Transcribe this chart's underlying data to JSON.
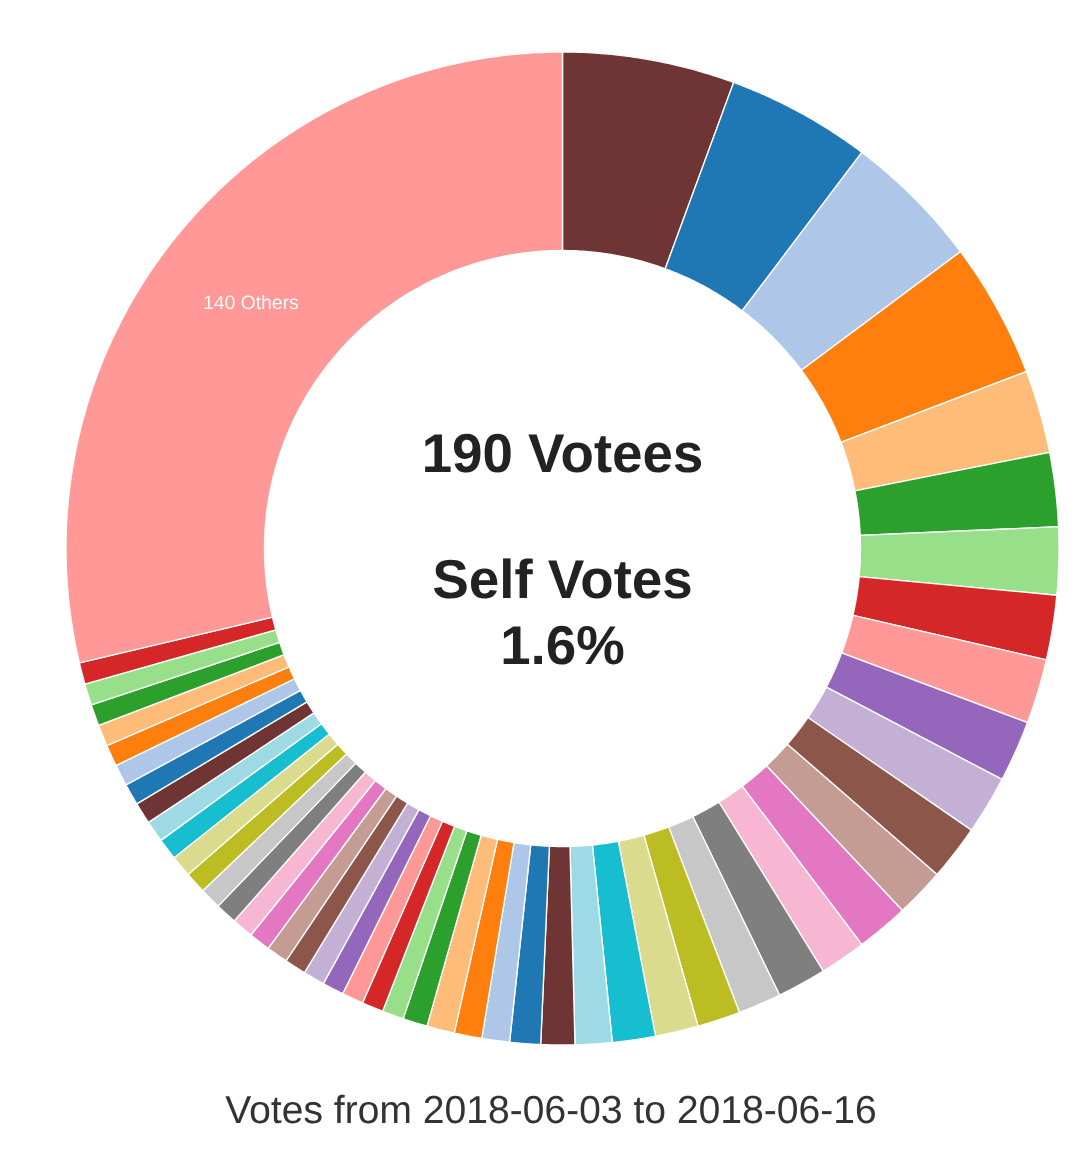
{
  "chart_data": {
    "type": "donut",
    "title": "190 Votees",
    "annotations": [
      "Self Votes",
      "1.6%",
      "Votes from 2018-06-03 to 2018-06-16"
    ],
    "categories": [
      null,
      null,
      null,
      null,
      null,
      null,
      null,
      null,
      null,
      null,
      null,
      null,
      null,
      null,
      null,
      null,
      null,
      null,
      null,
      null,
      null,
      null,
      null,
      null,
      null,
      null,
      null,
      null,
      null,
      null,
      null,
      null,
      null,
      null,
      null,
      null,
      null,
      null,
      null,
      null,
      null,
      null,
      null,
      null,
      null,
      null,
      null,
      null,
      null,
      null,
      "140 Others"
    ],
    "values": [
      5.6,
      4.7,
      4.5,
      4.4,
      2.7,
      2.4,
      2.2,
      2.1,
      2.1,
      2.0,
      1.9,
      1.8,
      1.6,
      1.7,
      1.5,
      1.6,
      1.4,
      1.4,
      1.4,
      1.4,
      1.2,
      1.1,
      1.0,
      0.9,
      0.9,
      0.9,
      0.8,
      0.7,
      0.7,
      0.7,
      0.7,
      0.7,
      0.7,
      0.7,
      0.7,
      0.7,
      0.7,
      0.7,
      0.7,
      0.7,
      0.7,
      0.7,
      0.7,
      0.7,
      0.7,
      0.7,
      0.7,
      0.7,
      0.7,
      0.7,
      28.7
    ],
    "colors": [
      "#6f3534",
      "#1f77b4",
      "#aec7e8",
      "#ff7f0e",
      "#ffbb78",
      "#2ca02c",
      "#98df8a",
      "#d62728",
      "#ff9896",
      "#9467bd",
      "#c5b0d5",
      "#8c564b",
      "#c49c94",
      "#e377c2",
      "#f7b6d2",
      "#7f7f7f",
      "#c7c7c7",
      "#bcbd22",
      "#dbdb8d",
      "#17becf",
      "#9edae5",
      "#6f3534",
      "#1f77b4",
      "#aec7e8",
      "#ff7f0e",
      "#ffbb78",
      "#2ca02c",
      "#98df8a",
      "#d62728",
      "#ff9896",
      "#9467bd",
      "#c5b0d5",
      "#8c564b",
      "#c49c94",
      "#e377c2",
      "#f7b6d2",
      "#7f7f7f",
      "#c7c7c7",
      "#bcbd22",
      "#dbdb8d",
      "#17becf",
      "#9edae5",
      "#6f3534",
      "#1f77b4",
      "#aec7e8",
      "#ff7f0e",
      "#ffbb78",
      "#2ca02c",
      "#98df8a",
      "#d62728",
      "#ff9896"
    ]
  }
}
